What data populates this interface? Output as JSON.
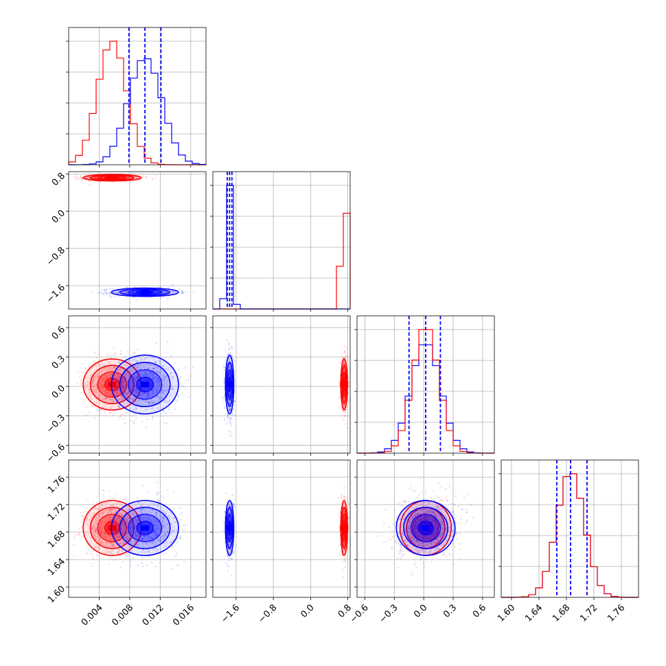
{
  "chart_data": {
    "type": "corner",
    "grid": true,
    "colors": {
      "red": "#ff0000",
      "blue": "#0000ff"
    },
    "parameters": [
      {
        "range": [
          0.0,
          0.018
        ],
        "ticks": [
          0.004,
          0.008,
          0.012,
          0.016
        ],
        "tick_labels": [
          "0.004",
          "0.008",
          "0.012",
          "0.016"
        ]
      },
      {
        "range": [
          -2.1,
          0.85
        ],
        "ticks": [
          -1.6,
          -0.8,
          0.0,
          0.8
        ],
        "tick_labels": [
          "−1.6",
          "−0.8",
          "0.0",
          "0.8"
        ]
      },
      {
        "range": [
          -0.68,
          0.72
        ],
        "ticks": [
          -0.6,
          -0.3,
          0.0,
          0.3,
          0.6
        ],
        "tick_labels": [
          "−0.6",
          "−0.3",
          "0.0",
          "0.3",
          "0.6"
        ]
      },
      {
        "range": [
          1.585,
          1.785
        ],
        "ticks": [
          1.6,
          1.64,
          1.68,
          1.72,
          1.76
        ],
        "tick_labels": [
          "1.60",
          "1.64",
          "1.68",
          "1.72",
          "1.76"
        ]
      }
    ],
    "series": [
      {
        "color": "red",
        "mean": [
          0.0057,
          0.72,
          0.02,
          1.686
        ],
        "std": [
          0.0019,
          0.035,
          0.13,
          0.02
        ]
      },
      {
        "color": "blue",
        "mean": [
          0.01,
          -1.74,
          0.02,
          1.686
        ],
        "std": [
          0.0022,
          0.045,
          0.15,
          0.02
        ]
      }
    ],
    "quantiles_blue": [
      [
        0.0079,
        0.01,
        0.0121
      ],
      [
        -1.79,
        -1.74,
        -1.69
      ],
      [
        -0.15,
        0.02,
        0.17
      ],
      [
        1.666,
        1.686,
        1.71
      ]
    ]
  }
}
